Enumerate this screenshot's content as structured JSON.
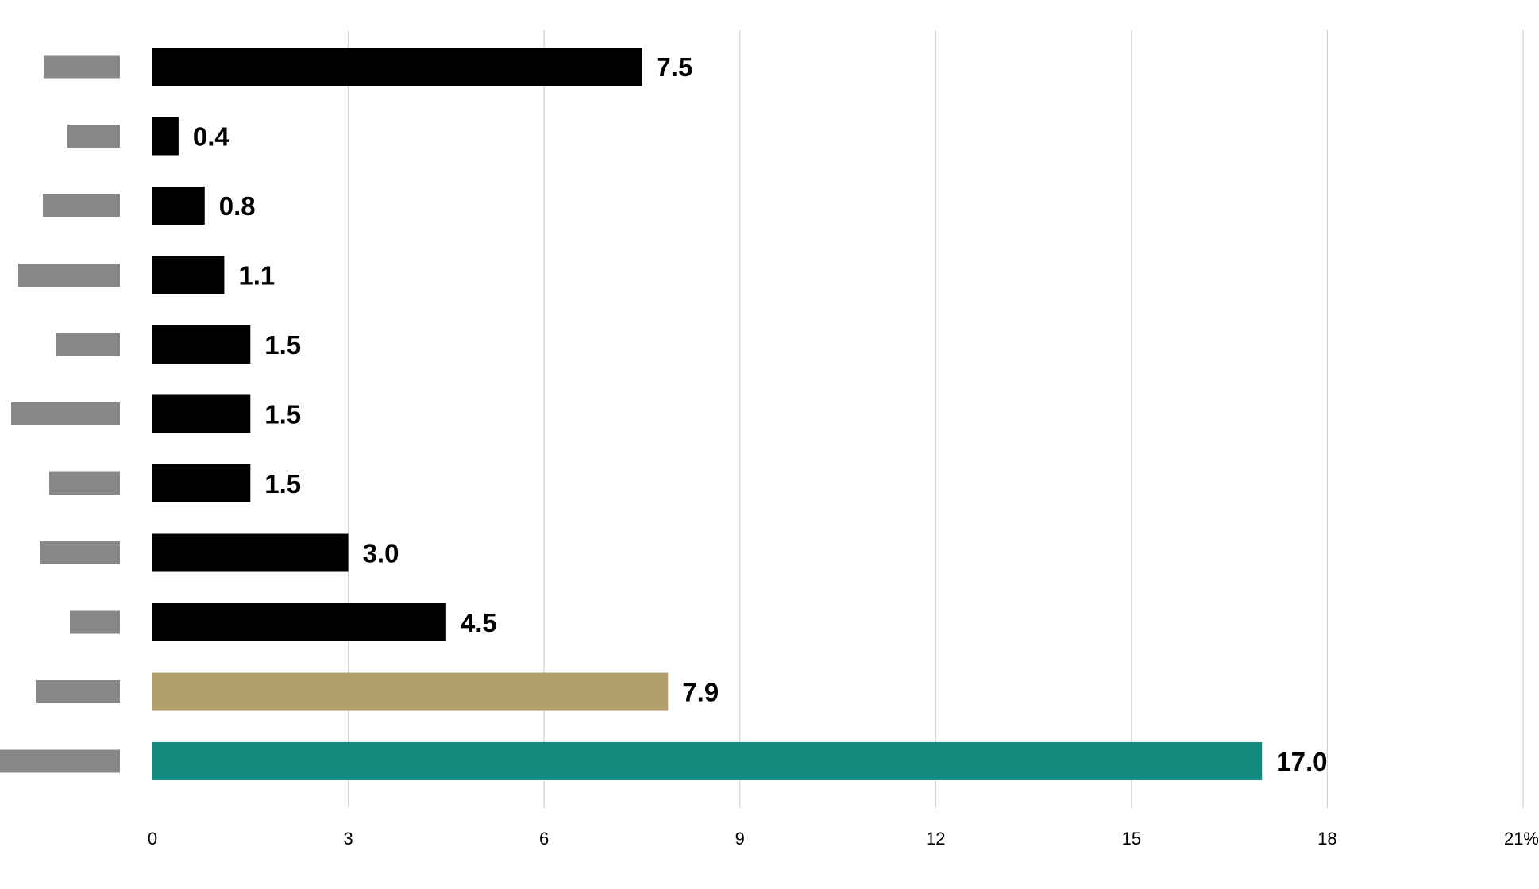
{
  "chart_data": {
    "type": "bar",
    "orientation": "horizontal",
    "categories_redacted": true,
    "categories": [
      "",
      "",
      "",
      "",
      "",
      "",
      "",
      "",
      "",
      "",
      ""
    ],
    "values": [
      7.5,
      0.4,
      0.8,
      1.1,
      1.5,
      1.5,
      1.5,
      3.0,
      4.5,
      7.9,
      17.0
    ],
    "value_labels": [
      "7.5",
      "0.4",
      "0.8",
      "1.1",
      "1.5",
      "1.5",
      "1.5",
      "3.0",
      "4.5",
      "7.9",
      "17.0"
    ],
    "bar_colors": [
      "#000000",
      "#000000",
      "#000000",
      "#000000",
      "#000000",
      "#000000",
      "#000000",
      "#000000",
      "#000000",
      "#b39e6d",
      "#128b7e"
    ],
    "xlim": [
      0,
      21
    ],
    "x_ticks": [
      0,
      3,
      6,
      9,
      12,
      15,
      18,
      21
    ],
    "x_tick_labels": [
      "0",
      "3",
      "6",
      "9",
      "12",
      "15",
      "18",
      "21%"
    ],
    "title": "",
    "xlabel": "",
    "ylabel": "",
    "grid": "vertical",
    "legend": "none"
  },
  "colors": {
    "grid": "#d0d0d0",
    "redacted_label": "#888888",
    "text": "#000000"
  }
}
